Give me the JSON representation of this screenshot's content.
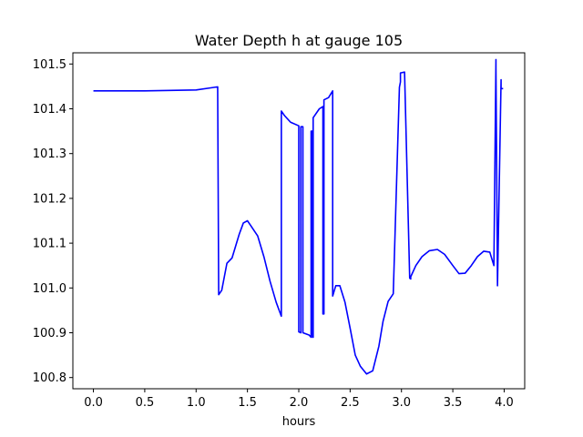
{
  "chart_data": {
    "type": "line",
    "title": "Water Depth h at gauge 105",
    "xlabel": "hours",
    "ylabel": "",
    "xlim": [
      -0.2,
      4.2
    ],
    "ylim": [
      100.775,
      101.525
    ],
    "xticks": [
      0.0,
      0.5,
      1.0,
      1.5,
      2.0,
      2.5,
      3.0,
      3.5,
      4.0
    ],
    "xtick_labels": [
      "0.0",
      "0.5",
      "1.0",
      "1.5",
      "2.0",
      "2.5",
      "3.0",
      "3.5",
      "4.0"
    ],
    "yticks": [
      100.8,
      100.9,
      101.0,
      101.1,
      101.2,
      101.3,
      101.4,
      101.5
    ],
    "ytick_labels": [
      "100.8",
      "100.9",
      "101.0",
      "101.1",
      "101.2",
      "101.3",
      "101.4",
      "101.5"
    ],
    "grid": false,
    "line_color": "#0000ff",
    "series": [
      {
        "name": "",
        "x": [
          0.0,
          0.5,
          1.0,
          1.15,
          1.21,
          1.22,
          1.25,
          1.3,
          1.35,
          1.42,
          1.46,
          1.5,
          1.53,
          1.6,
          1.66,
          1.72,
          1.78,
          1.83,
          1.83,
          1.86,
          1.92,
          2.0,
          2.0,
          2.02,
          2.02,
          2.04,
          2.04,
          2.1,
          2.12,
          2.12,
          2.135,
          2.135,
          2.14,
          2.14,
          2.2,
          2.235,
          2.235,
          2.245,
          2.245,
          2.29,
          2.33,
          2.33,
          2.36,
          2.4,
          2.45,
          2.5,
          2.55,
          2.6,
          2.66,
          2.72,
          2.78,
          2.82,
          2.87,
          2.92,
          2.98,
          2.99,
          2.99,
          3.03,
          3.08,
          3.09,
          3.09,
          3.14,
          3.2,
          3.27,
          3.35,
          3.42,
          3.5,
          3.56,
          3.62,
          3.68,
          3.74,
          3.8,
          3.86,
          3.9,
          3.92,
          3.92,
          3.935,
          3.935,
          3.97,
          3.97,
          3.99
        ],
        "y": [
          101.44,
          101.44,
          101.442,
          101.447,
          101.449,
          100.985,
          100.995,
          101.055,
          101.067,
          101.12,
          101.145,
          101.15,
          101.14,
          101.116,
          101.07,
          101.015,
          100.968,
          100.937,
          101.395,
          101.385,
          101.37,
          101.362,
          100.902,
          100.9,
          101.36,
          101.36,
          100.9,
          100.895,
          100.89,
          101.35,
          101.35,
          100.89,
          100.89,
          101.38,
          101.4,
          101.405,
          100.942,
          100.942,
          101.42,
          101.425,
          101.44,
          100.982,
          101.005,
          101.005,
          100.968,
          100.91,
          100.85,
          100.825,
          100.808,
          100.815,
          100.87,
          100.925,
          100.97,
          100.987,
          101.448,
          101.46,
          101.48,
          101.482,
          101.022,
          101.02,
          101.025,
          101.05,
          101.07,
          101.083,
          101.086,
          101.075,
          101.05,
          101.032,
          101.033,
          101.05,
          101.07,
          101.082,
          101.08,
          101.05,
          101.51,
          101.49,
          101.01,
          101.005,
          101.465,
          101.445,
          101.445
        ]
      }
    ]
  }
}
